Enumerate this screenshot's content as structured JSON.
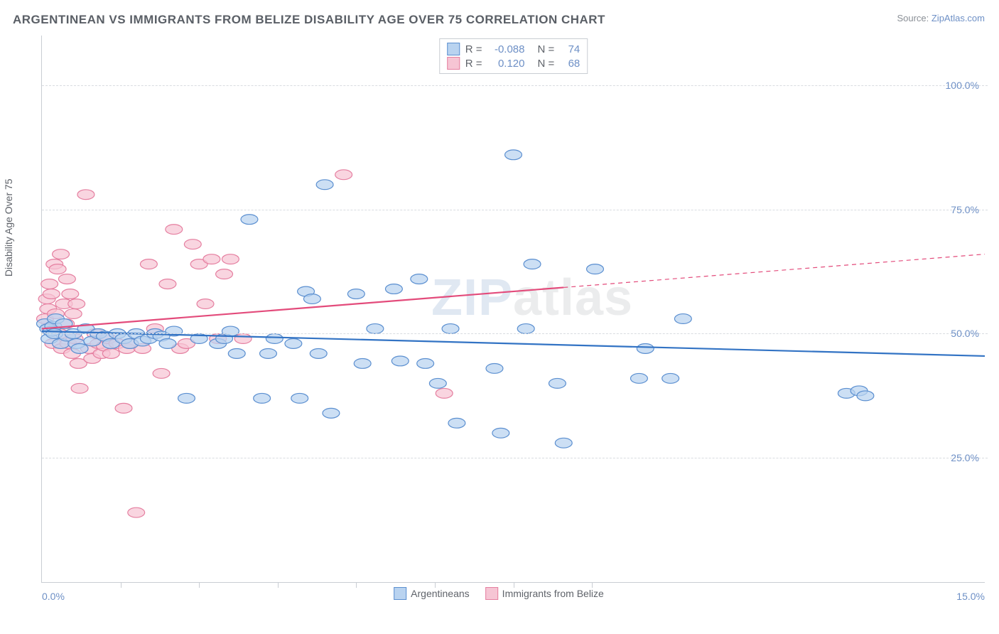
{
  "title": "ARGENTINEAN VS IMMIGRANTS FROM BELIZE DISABILITY AGE OVER 75 CORRELATION CHART",
  "source_prefix": "Source: ",
  "source_link": "ZipAtlas.com",
  "ylabel": "Disability Age Over 75",
  "watermark_z": "ZIP",
  "watermark_rest": "atlas",
  "chart": {
    "type": "scatter",
    "xlim": [
      0,
      15
    ],
    "ylim": [
      0,
      110
    ],
    "x_min_label": "0.0%",
    "x_max_label": "15.0%",
    "yticks": [
      25,
      50,
      75,
      100
    ],
    "ytick_labels": [
      "25.0%",
      "50.0%",
      "75.0%",
      "100.0%"
    ],
    "xtick_positions": [
      1.25,
      2.5,
      3.75,
      5.0,
      6.25,
      7.5,
      8.75
    ],
    "grid_color": "#d8dbe0",
    "axis_color": "#c9cdd3",
    "tick_label_color": "#6e90c6",
    "point_radius": 9,
    "point_stroke_width": 1.2,
    "line_width": 2.2,
    "series": [
      {
        "name": "Argentineans",
        "fill": "#b9d3f0",
        "stroke": "#5b8fd0",
        "line_color": "#3273c4",
        "R_label": "R =",
        "R": "-0.088",
        "N_label": "N =",
        "N": "74",
        "trend": {
          "x1": 0,
          "y1": 50.5,
          "x2": 15,
          "y2": 45.5,
          "dash_from_x": null
        },
        "points": [
          [
            0.05,
            52
          ],
          [
            0.1,
            51
          ],
          [
            0.12,
            49
          ],
          [
            0.15,
            50.5
          ],
          [
            0.18,
            51.5
          ],
          [
            0.2,
            50
          ],
          [
            0.22,
            53
          ],
          [
            0.3,
            48
          ],
          [
            0.35,
            52
          ],
          [
            0.4,
            49.5
          ],
          [
            0.5,
            50
          ],
          [
            0.55,
            48
          ],
          [
            0.6,
            47
          ],
          [
            0.7,
            51
          ],
          [
            0.8,
            48.5
          ],
          [
            0.9,
            50
          ],
          [
            1.0,
            49.5
          ],
          [
            1.1,
            48
          ],
          [
            1.2,
            50
          ],
          [
            1.3,
            49
          ],
          [
            1.4,
            48
          ],
          [
            1.5,
            50
          ],
          [
            1.6,
            48.5
          ],
          [
            1.7,
            49
          ],
          [
            1.8,
            50
          ],
          [
            1.9,
            49.5
          ],
          [
            2.0,
            48
          ],
          [
            2.1,
            50.5
          ],
          [
            2.3,
            37
          ],
          [
            2.5,
            49
          ],
          [
            2.8,
            48
          ],
          [
            2.9,
            49
          ],
          [
            3.0,
            50.5
          ],
          [
            3.1,
            46
          ],
          [
            3.3,
            73
          ],
          [
            3.5,
            37
          ],
          [
            3.6,
            46
          ],
          [
            3.7,
            49
          ],
          [
            4.0,
            48
          ],
          [
            4.1,
            37
          ],
          [
            4.2,
            58.5
          ],
          [
            4.3,
            57
          ],
          [
            4.4,
            46
          ],
          [
            4.5,
            80
          ],
          [
            4.6,
            34
          ],
          [
            5.0,
            58
          ],
          [
            5.1,
            44
          ],
          [
            5.3,
            51
          ],
          [
            5.6,
            59
          ],
          [
            5.7,
            44.5
          ],
          [
            6.0,
            61
          ],
          [
            6.1,
            44
          ],
          [
            6.3,
            40
          ],
          [
            6.5,
            51
          ],
          [
            6.6,
            32
          ],
          [
            7.2,
            43
          ],
          [
            7.3,
            30
          ],
          [
            7.5,
            86
          ],
          [
            7.7,
            51
          ],
          [
            7.8,
            64
          ],
          [
            8.2,
            40
          ],
          [
            8.3,
            28
          ],
          [
            8.8,
            63
          ],
          [
            9.5,
            41
          ],
          [
            9.6,
            47
          ],
          [
            10.0,
            41
          ],
          [
            10.2,
            53
          ],
          [
            12.8,
            38
          ],
          [
            13.0,
            38.5
          ],
          [
            13.1,
            37.5
          ]
        ]
      },
      {
        "name": "Immigrants from Belize",
        "fill": "#f6c5d4",
        "stroke": "#e57fa0",
        "line_color": "#e34b7b",
        "R_label": "R =",
        "R": "0.120",
        "N_label": "N =",
        "N": "68",
        "trend": {
          "x1": 0,
          "y1": 51,
          "x2": 15,
          "y2": 66,
          "dash_from_x": 8.3
        },
        "points": [
          [
            0.05,
            53
          ],
          [
            0.08,
            57
          ],
          [
            0.1,
            55
          ],
          [
            0.12,
            60
          ],
          [
            0.13,
            51
          ],
          [
            0.15,
            58
          ],
          [
            0.18,
            48
          ],
          [
            0.2,
            64
          ],
          [
            0.22,
            54
          ],
          [
            0.25,
            63
          ],
          [
            0.28,
            50
          ],
          [
            0.3,
            66
          ],
          [
            0.32,
            47
          ],
          [
            0.35,
            56
          ],
          [
            0.38,
            52
          ],
          [
            0.4,
            61
          ],
          [
            0.42,
            48
          ],
          [
            0.45,
            58
          ],
          [
            0.48,
            46
          ],
          [
            0.5,
            54
          ],
          [
            0.52,
            49
          ],
          [
            0.55,
            56
          ],
          [
            0.58,
            44
          ],
          [
            0.6,
            39
          ],
          [
            0.7,
            78
          ],
          [
            0.75,
            47
          ],
          [
            0.8,
            45
          ],
          [
            0.85,
            50
          ],
          [
            0.9,
            48
          ],
          [
            0.95,
            46
          ],
          [
            1.0,
            47.5
          ],
          [
            1.05,
            49
          ],
          [
            1.1,
            46
          ],
          [
            1.2,
            48
          ],
          [
            1.3,
            35
          ],
          [
            1.35,
            47
          ],
          [
            1.4,
            48
          ],
          [
            1.5,
            14
          ],
          [
            1.6,
            47
          ],
          [
            1.7,
            64
          ],
          [
            1.8,
            51
          ],
          [
            1.9,
            42
          ],
          [
            2.0,
            60
          ],
          [
            2.1,
            71
          ],
          [
            2.2,
            47
          ],
          [
            2.3,
            48
          ],
          [
            2.4,
            68
          ],
          [
            2.5,
            64
          ],
          [
            2.6,
            56
          ],
          [
            2.7,
            65
          ],
          [
            2.8,
            49
          ],
          [
            2.9,
            62
          ],
          [
            3.0,
            65
          ],
          [
            3.2,
            49
          ],
          [
            4.8,
            82
          ],
          [
            6.4,
            38
          ]
        ]
      }
    ]
  }
}
